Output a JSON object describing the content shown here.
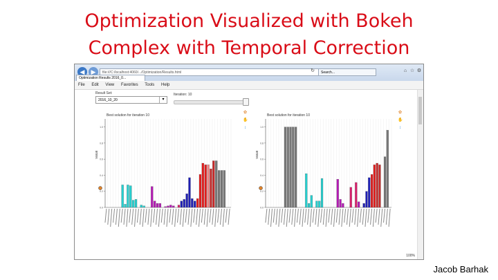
{
  "slide": {
    "title_line1": "Optimization Visualized with Bokeh",
    "title_line2": "Complex with Temporal Correction",
    "author": "Jacob Barhak"
  },
  "browser": {
    "address": "file:///C:/localhost:4060/.../Optimization/Results.html",
    "search_tab": "Search...",
    "page_tab": "Optimization Results 2016_0...",
    "menu": [
      "File",
      "Edit",
      "View",
      "Favorites",
      "Tools",
      "Help"
    ],
    "zoom": "100%"
  },
  "controls": {
    "result_set_label": "Result Set:",
    "result_set_value": "2016_10_20",
    "iteration_label": "Iteration: 10"
  },
  "charts": {
    "left_title": "Best solution for iteration 10",
    "right_title": "Best solution for iteration 10",
    "ylabel": "Value"
  },
  "chart_data": [
    {
      "type": "bar",
      "title": "Best solution for iteration 10",
      "ylabel": "Value",
      "ylim": [
        0,
        1.1
      ],
      "yticks": [
        0,
        0.2,
        0.4,
        0.6,
        0.8,
        1.0
      ],
      "values": [
        0.0,
        0.0,
        0.0,
        0.0,
        0.0,
        0.0,
        0.28,
        0.04,
        0.28,
        0.27,
        0.09,
        0.1,
        0.0,
        0.03,
        0.02,
        0.0,
        0.0,
        0.26,
        0.08,
        0.05,
        0.05,
        0.0,
        0.01,
        0.02,
        0.03,
        0.02,
        0.0,
        0.03,
        0.08,
        0.1,
        0.17,
        0.37,
        0.11,
        0.08,
        0.11,
        0.41,
        0.55,
        0.53,
        0.53,
        0.48,
        0.58,
        0.58,
        0.46,
        0.46,
        0.46,
        0.0,
        0.0
      ],
      "colors": [
        "#ffffff",
        "#ffffff",
        "#ffffff",
        "#ffffff",
        "#ffffff",
        "#ffffff",
        "#26cfcf",
        "#26cfcf",
        "#26cfcf",
        "#26cfcf",
        "#26cfcf",
        "#26cfcf",
        "#ffffff",
        "#26cfcf",
        "#26cfcf",
        "#ffffff",
        "#ffffff",
        "#b41ab4",
        "#b41ab4",
        "#b41ab4",
        "#b41ab4",
        "#ffffff",
        "#b41ab4",
        "#b41ab4",
        "#b41ab4",
        "#b41ab4",
        "#ffffff",
        "#d81f6b",
        "#1f1fb4",
        "#1f1fb4",
        "#1f1fb4",
        "#1f1fb4",
        "#1f1fb4",
        "#1f1fb4",
        "#e31c1c",
        "#e31c1c",
        "#e31c1c",
        "#e31c1c",
        "#f08080",
        "#c62828",
        "#c62828",
        "#777777",
        "#777777",
        "#777777",
        "#777777",
        "#ffffff",
        "#ffffff"
      ]
    },
    {
      "type": "bar",
      "title": "Best solution for iteration 10",
      "ylabel": "Value",
      "ylim": [
        0,
        1.1
      ],
      "yticks": [
        0,
        0.2,
        0.4,
        0.6,
        0.8,
        1.0
      ],
      "values": [
        0.0,
        0.0,
        0.0,
        0.0,
        0.0,
        0.0,
        0.0,
        1.0,
        1.0,
        1.0,
        1.0,
        1.0,
        0.0,
        0.0,
        0.0,
        0.42,
        0.05,
        0.15,
        0.0,
        0.08,
        0.08,
        0.36,
        0.0,
        0.0,
        0.0,
        0.0,
        0.0,
        0.35,
        0.1,
        0.05,
        0.0,
        0.0,
        0.25,
        0.0,
        0.31,
        0.07,
        0.0,
        0.05,
        0.2,
        0.37,
        0.41,
        0.53,
        0.55,
        0.53,
        0.0,
        0.63,
        0.96,
        0.0
      ],
      "colors": [
        "#ffffff",
        "#ffffff",
        "#ffffff",
        "#ffffff",
        "#ffffff",
        "#ffffff",
        "#ffffff",
        "#777777",
        "#777777",
        "#777777",
        "#777777",
        "#777777",
        "#ffffff",
        "#ffffff",
        "#ffffff",
        "#26cfcf",
        "#26cfcf",
        "#26cfcf",
        "#ffffff",
        "#26cfcf",
        "#26cfcf",
        "#26cfcf",
        "#ffffff",
        "#ffffff",
        "#ffffff",
        "#ffffff",
        "#ffffff",
        "#b41ab4",
        "#b41ab4",
        "#b41ab4",
        "#ffffff",
        "#ffffff",
        "#d81f6b",
        "#ffffff",
        "#d81f6b",
        "#b41ab4",
        "#ffffff",
        "#1f1fb4",
        "#1f1fb4",
        "#1f1fb4",
        "#e31c1c",
        "#e31c1c",
        "#c62828",
        "#c62828",
        "#ffffff",
        "#777777",
        "#777777",
        "#ffffff"
      ]
    }
  ]
}
